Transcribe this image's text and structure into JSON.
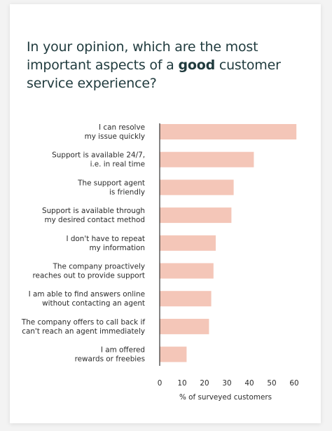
{
  "chart_data": {
    "type": "bar",
    "orientation": "horizontal",
    "title_parts": [
      "In your opinion, which are the most important aspects of a ",
      "good",
      " customer service experience?"
    ],
    "categories": [
      [
        "I can resolve",
        "my issue quickly"
      ],
      [
        "Support is available 24/7,",
        "i.e. in real time"
      ],
      [
        "The support agent",
        "is friendly"
      ],
      [
        "Support is available through",
        "my desired contact method"
      ],
      [
        "I don't have to repeat",
        "my information"
      ],
      [
        "The company proactively",
        "reaches out to provide support"
      ],
      [
        "I am able to find answers online",
        "without contacting an agent"
      ],
      [
        "The company offers to call back if",
        "can't reach an agent immediately"
      ],
      [
        "I am offered",
        "rewards or freebies"
      ]
    ],
    "values": [
      61,
      42,
      33,
      32,
      25,
      24,
      23,
      22,
      12
    ],
    "xlabel": "% of surveyed customers",
    "ylabel": "",
    "xlim": [
      0,
      60
    ],
    "xticks": [
      "0",
      "10",
      "20",
      "30",
      "40",
      "50",
      "60"
    ],
    "grid": false,
    "legend": "none",
    "colors": {
      "bar": "#f4c6b8",
      "axis": "#333333",
      "title": "#1f3a3d"
    }
  }
}
